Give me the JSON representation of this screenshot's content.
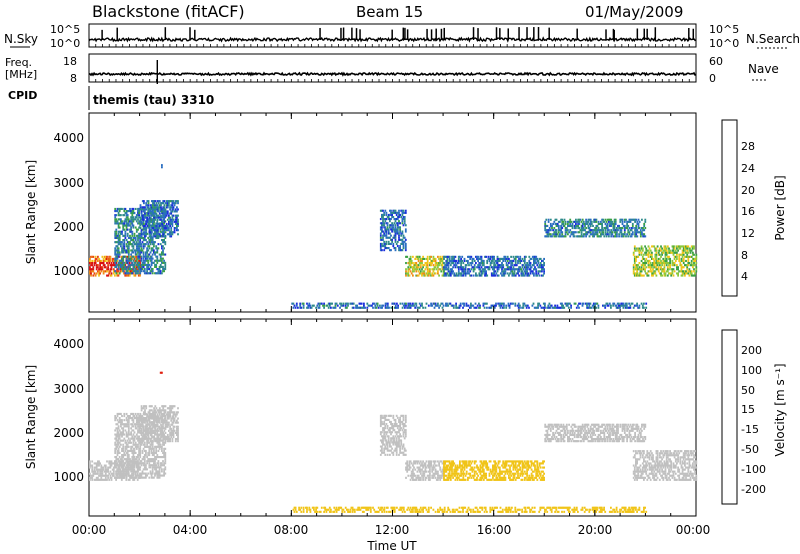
{
  "header": {
    "site": "Blackstone (fitACF)",
    "beam": "Beam 15",
    "date": "01/May/2009"
  },
  "strips": {
    "nsky_label": "N.Sky",
    "nsky_ticks": [
      "10^5",
      "10^0"
    ],
    "nsearch_label": "N.Search",
    "nsearch_ticks": [
      "10^5",
      "10^0"
    ],
    "freq_label_1": "Freq.",
    "freq_label_2": "[MHz]",
    "freq_ticks": [
      "18",
      "8"
    ],
    "nave_label": "Nave",
    "nave_ticks": [
      "60",
      "0"
    ],
    "cpid_label": "CPID",
    "cpid_value": "themis (tau) 3310"
  },
  "xaxis": {
    "label": "Time UT",
    "ticks": [
      "00:00",
      "04:00",
      "08:00",
      "12:00",
      "16:00",
      "20:00",
      "00:00"
    ]
  },
  "colorbars": {
    "power": {
      "label": "Power [dB]",
      "ticks": [
        "28",
        "24",
        "20",
        "16",
        "12",
        "8",
        "4"
      ],
      "colors": [
        "#1a2edb",
        "#2a6ec0",
        "#2e8a8a",
        "#3aa044",
        "#8cc83c",
        "#f0c418",
        "#f08c14",
        "#e84410",
        "#d81010"
      ]
    },
    "velocity": {
      "label": "Velocity [m s⁻¹]",
      "ticks": [
        "200",
        "100",
        "50",
        "15",
        "-15",
        "-50",
        "-100",
        "-200"
      ],
      "colors": [
        "#1430c8",
        "#2266b0",
        "#2e8a5a",
        "#5ab448",
        "#aadc40",
        "#c0c0c0",
        "#f0c418",
        "#f0a018",
        "#f06010",
        "#e02010"
      ]
    }
  },
  "chart_data": [
    {
      "type": "heatmap",
      "title": "Power",
      "ylabel": "Slant Range [km]",
      "yticks": [
        "1000",
        "2000",
        "3000",
        "4000"
      ],
      "ylim": [
        180,
        4500
      ],
      "xlim": [
        0,
        24
      ],
      "xlabel": "Time UT",
      "cbar_label": "Power [dB]",
      "series": [
        {
          "t": [
            0.0,
            2.0
          ],
          "range": [
            950,
            1400
          ],
          "value": 24,
          "note": "strong"
        },
        {
          "t": [
            1.0,
            3.0
          ],
          "range": [
            1000,
            2400
          ],
          "value": 8
        },
        {
          "t": [
            2.0,
            3.5
          ],
          "range": [
            1800,
            2600
          ],
          "value": 6
        },
        {
          "t": [
            2.8,
            2.85
          ],
          "range": [
            3300,
            3350
          ],
          "value": 8
        },
        {
          "t": [
            11.5,
            12.5
          ],
          "range": [
            1500,
            2400
          ],
          "value": 6
        },
        {
          "t": [
            12.5,
            14.0
          ],
          "range": [
            950,
            1400
          ],
          "value": 18
        },
        {
          "t": [
            14.0,
            18.0
          ],
          "range": [
            950,
            1400
          ],
          "value": 6
        },
        {
          "t": [
            18.0,
            22.0
          ],
          "range": [
            1800,
            2200
          ],
          "value": 8
        },
        {
          "t": [
            21.5,
            24.0
          ],
          "range": [
            950,
            1600
          ],
          "value": 16
        },
        {
          "t": [
            8.0,
            22.0
          ],
          "range": [
            250,
            350
          ],
          "value": 6
        }
      ]
    },
    {
      "type": "heatmap",
      "title": "Velocity",
      "ylabel": "Slant Range [km]",
      "yticks": [
        "1000",
        "2000",
        "3000",
        "4000"
      ],
      "ylim": [
        180,
        4500
      ],
      "xlim": [
        0,
        24
      ],
      "xlabel": "Time UT",
      "cbar_label": "Velocity [m s⁻¹]",
      "series": [
        {
          "t": [
            0.0,
            2.0
          ],
          "range": [
            950,
            1400
          ],
          "value": 0
        },
        {
          "t": [
            1.0,
            3.0
          ],
          "range": [
            1000,
            2400
          ],
          "value": 0
        },
        {
          "t": [
            2.0,
            3.5
          ],
          "range": [
            1800,
            2600
          ],
          "value": 5
        },
        {
          "t": [
            2.8,
            2.85
          ],
          "range": [
            3300,
            3350
          ],
          "value": -150
        },
        {
          "t": [
            11.5,
            12.5
          ],
          "range": [
            1500,
            2400
          ],
          "value": 0
        },
        {
          "t": [
            12.5,
            14.0
          ],
          "range": [
            950,
            1400
          ],
          "value": 10
        },
        {
          "t": [
            14.0,
            18.0
          ],
          "range": [
            950,
            1400
          ],
          "value": -20
        },
        {
          "t": [
            18.0,
            22.0
          ],
          "range": [
            1800,
            2200
          ],
          "value": 0
        },
        {
          "t": [
            21.5,
            24.0
          ],
          "range": [
            950,
            1600
          ],
          "value": 0
        },
        {
          "t": [
            8.0,
            22.0
          ],
          "range": [
            250,
            350
          ],
          "value": -40
        }
      ]
    }
  ]
}
